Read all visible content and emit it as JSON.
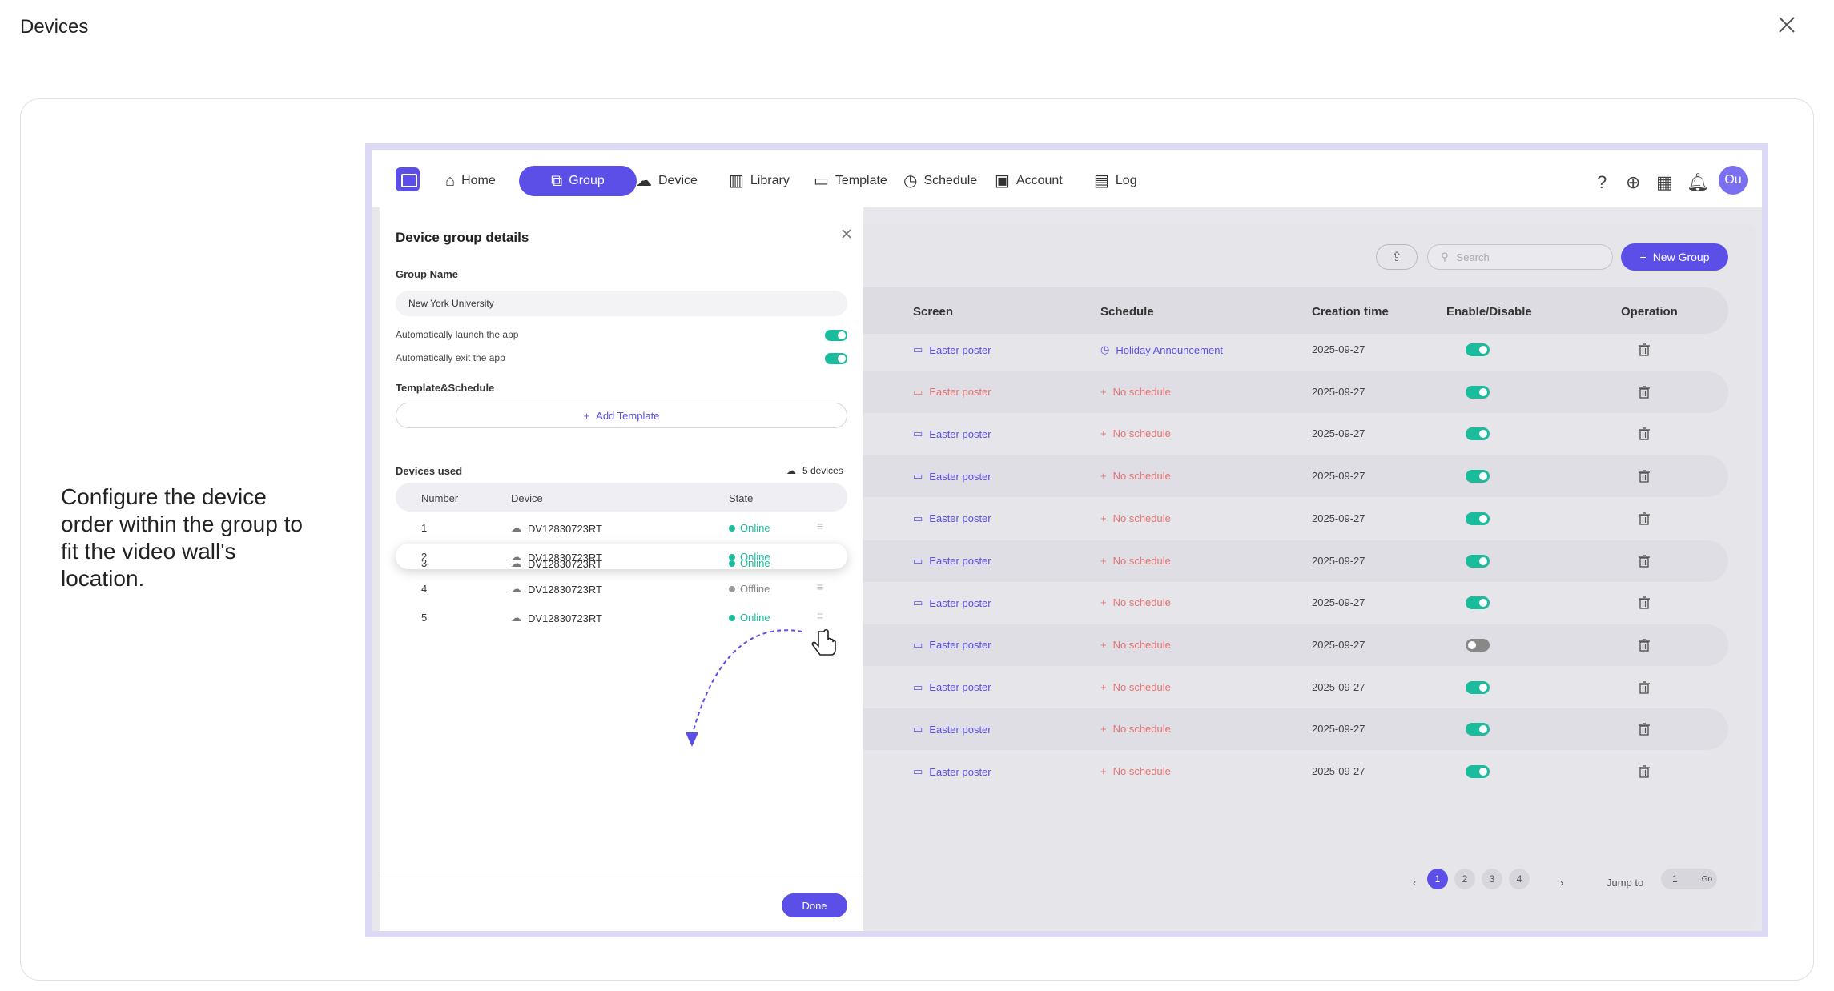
{
  "page_title": "Devices",
  "description": "Configure the device order within the group to fit the video wall's location.",
  "app": {
    "nav": [
      {
        "label": "Home",
        "icon": "home-icon",
        "glyph": "⌂"
      },
      {
        "label": "Group",
        "icon": "group-icon",
        "glyph": "⧉"
      },
      {
        "label": "Device",
        "icon": "device-icon",
        "glyph": "☁"
      },
      {
        "label": "Library",
        "icon": "library-icon",
        "glyph": "▥"
      },
      {
        "label": "Template",
        "icon": "template-icon",
        "glyph": "▭"
      },
      {
        "label": "Schedule",
        "icon": "clock-icon",
        "glyph": "◷"
      },
      {
        "label": "Account",
        "icon": "account-icon",
        "glyph": "▣"
      },
      {
        "label": "Log",
        "icon": "log-icon",
        "glyph": "▤"
      }
    ],
    "avatar": "Ou",
    "search_placeholder": "Search",
    "new_group_label": "New Group",
    "table_headers": {
      "screen": "Screen",
      "schedule": "Schedule",
      "creation_time": "Creation time",
      "enable": "Enable/Disable",
      "operation": "Operation"
    },
    "rows": [
      {
        "screen": "Easter poster",
        "screen_red": false,
        "schedule": "Holiday Announcement",
        "has_schedule": true,
        "time": "2025-09-27",
        "enabled": true
      },
      {
        "screen": "Easter poster",
        "screen_red": true,
        "schedule": "No schedule",
        "has_schedule": false,
        "time": "2025-09-27",
        "enabled": true
      },
      {
        "screen": "Easter poster",
        "screen_red": false,
        "schedule": "No schedule",
        "has_schedule": false,
        "time": "2025-09-27",
        "enabled": true
      },
      {
        "screen": "Easter poster",
        "screen_red": false,
        "schedule": "No schedule",
        "has_schedule": false,
        "time": "2025-09-27",
        "enabled": true
      },
      {
        "screen": "Easter poster",
        "screen_red": false,
        "schedule": "No schedule",
        "has_schedule": false,
        "time": "2025-09-27",
        "enabled": true
      },
      {
        "screen": "Easter poster",
        "screen_red": false,
        "schedule": "No schedule",
        "has_schedule": false,
        "time": "2025-09-27",
        "enabled": true
      },
      {
        "screen": "Easter poster",
        "screen_red": false,
        "schedule": "No schedule",
        "has_schedule": false,
        "time": "2025-09-27",
        "enabled": true
      },
      {
        "screen": "Easter poster",
        "screen_red": false,
        "schedule": "No schedule",
        "has_schedule": false,
        "time": "2025-09-27",
        "enabled": false
      },
      {
        "screen": "Easter poster",
        "screen_red": false,
        "schedule": "No schedule",
        "has_schedule": false,
        "time": "2025-09-27",
        "enabled": true
      },
      {
        "screen": "Easter poster",
        "screen_red": false,
        "schedule": "No schedule",
        "has_schedule": false,
        "time": "2025-09-27",
        "enabled": true
      },
      {
        "screen": "Easter poster",
        "screen_red": false,
        "schedule": "No schedule",
        "has_schedule": false,
        "time": "2025-09-27",
        "enabled": true
      }
    ],
    "pagination": {
      "pages": [
        "1",
        "2",
        "3",
        "4"
      ],
      "current": "1",
      "jump_label": "Jump to",
      "jump_value": "1",
      "go_label": "Go"
    }
  },
  "panel": {
    "title": "Device group details",
    "group_name_label": "Group Name",
    "group_name_value": "New York University",
    "auto_launch_label": "Automatically launch the app",
    "auto_exit_label": "Automatically exit the app",
    "template_schedule_label": "Template&Schedule",
    "add_template_label": "Add Template",
    "devices_used_label": "Devices used",
    "device_count": "5 devices",
    "device_headers": {
      "number": "Number",
      "device": "Device",
      "state": "State"
    },
    "devices": [
      {
        "number": "1",
        "device": "DV12830723RT",
        "state": "Online",
        "online": true
      },
      {
        "number": "2",
        "device": "DV12830723RT",
        "state": "Online",
        "online": true
      },
      {
        "number": "3",
        "device": "DV12830723RT",
        "state": "Online",
        "online": true
      },
      {
        "number": "4",
        "device": "DV12830723RT",
        "state": "Offline",
        "online": false
      },
      {
        "number": "5",
        "device": "DV12830723RT",
        "state": "Online",
        "online": true
      }
    ],
    "done_label": "Done"
  },
  "colors": {
    "accent": "#5b4fe8",
    "online": "#1abc9c",
    "no_schedule": "#e57373"
  }
}
